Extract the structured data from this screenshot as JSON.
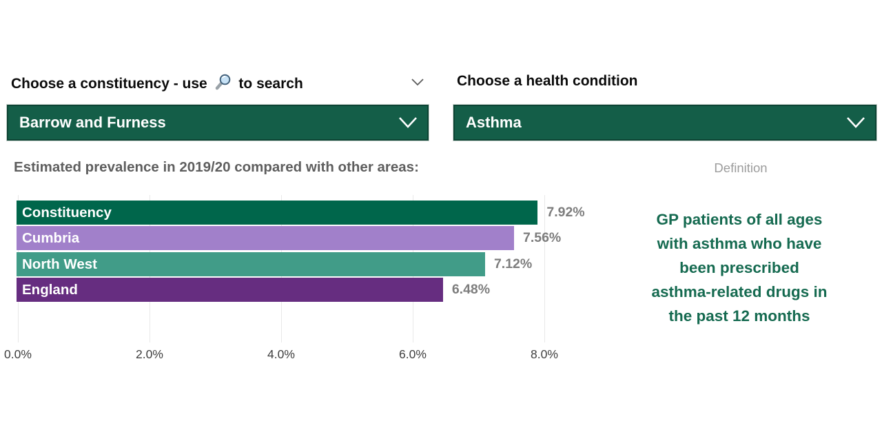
{
  "slicers": {
    "constituency": {
      "label_prefix": "Choose a constituency - use",
      "label_suffix": "to search",
      "search_icon": "magnifier-icon",
      "selected_value": "Barrow and Furness"
    },
    "condition": {
      "label": "Choose a health condition",
      "selected_value": "Asthma"
    }
  },
  "colors": {
    "dropdown_green": "#145e48",
    "dropdown_border": "#0c4434",
    "definition_green": "#156a50",
    "bar_constituency": "#00664b",
    "bar_cumbria": "#a180ca",
    "bar_north_west": "#419c88",
    "bar_england": "#662d80"
  },
  "chart_data": {
    "type": "bar",
    "orientation": "horizontal",
    "title": "Estimated prevalence in 2019/20 compared with other areas:",
    "categories": [
      "Constituency",
      "Cumbria",
      "North West",
      "England"
    ],
    "values": [
      7.92,
      7.56,
      7.12,
      6.48
    ],
    "value_labels": [
      "7.92%",
      "7.56%",
      "7.12%",
      "6.48%"
    ],
    "bar_colors": [
      "#00664b",
      "#a180ca",
      "#419c88",
      "#662d80"
    ],
    "xlabel": "",
    "ylabel": "",
    "xlim": [
      0,
      8.6
    ],
    "x_tick_values": [
      0,
      2,
      4,
      6,
      8
    ],
    "x_tick_labels": [
      "0.0%",
      "2.0%",
      "4.0%",
      "6.0%",
      "8.0%"
    ],
    "grid": true,
    "legend": false
  },
  "definition": {
    "heading": "Definition",
    "text": "GP patients of all ages\nwith asthma who have\nbeen prescribed\nasthma-related drugs in\nthe past 12 months"
  }
}
